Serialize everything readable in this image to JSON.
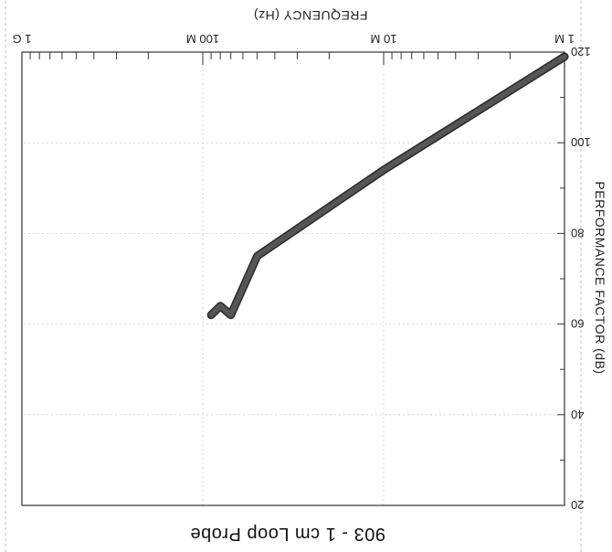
{
  "chart_data": {
    "type": "line",
    "title": "903 - 1 cm Loop Probe",
    "xlabel": "FREQUENCY (Hz)",
    "ylabel": "PERFORMANCE FACTOR (dB)",
    "x_scale": "log",
    "xlim": [
      1000000,
      1000000000
    ],
    "ylim": [
      20,
      120
    ],
    "x_ticks": [
      {
        "value": 1000000,
        "label": "1 M"
      },
      {
        "value": 10000000,
        "label": "10 M"
      },
      {
        "value": 100000000,
        "label": "100 M"
      },
      {
        "value": 1000000000,
        "label": "1 G"
      }
    ],
    "y_ticks": [
      {
        "value": 20,
        "label": "20"
      },
      {
        "value": 40,
        "label": "40"
      },
      {
        "value": 60,
        "label": "60"
      },
      {
        "value": 80,
        "label": "80"
      },
      {
        "value": 100,
        "label": "100"
      },
      {
        "value": 120,
        "label": "120"
      }
    ],
    "grid": true,
    "series": [
      {
        "color": "#555555",
        "x": [
          1000000,
          10000000,
          50000000,
          70000000,
          80000000,
          90000000
        ],
        "y": [
          119,
          94,
          75,
          62,
          64,
          62
        ]
      }
    ]
  }
}
